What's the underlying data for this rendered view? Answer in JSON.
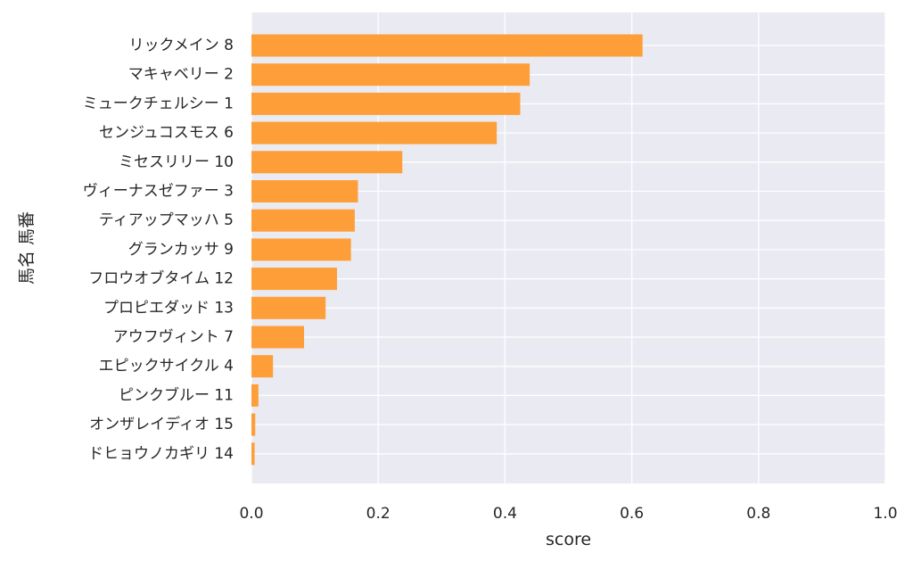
{
  "chart_data": {
    "type": "bar",
    "orientation": "horizontal",
    "title": "",
    "xlabel": "score",
    "ylabel": "馬名 馬番",
    "xlim": [
      0,
      1.0
    ],
    "xticks": [
      "0.0",
      "0.2",
      "0.4",
      "0.6",
      "0.8",
      "1.0"
    ],
    "grid": true,
    "bar_color": "#ff9a2e",
    "plot_background": "#eaeaf2",
    "categories": [
      "リックメイン 8",
      "マキャベリー 2",
      "ミュークチェルシー 1",
      "センジュコスモス 6",
      "ミセスリリー 10",
      "ヴィーナスゼファー 3",
      "ティアップマッハ 5",
      "グランカッサ 9",
      "フロウオブタイム 12",
      "プロピエダッド 13",
      "アウフヴィント 7",
      "エピックサイクル 4",
      "ピンクブルー 11",
      "オンザレイディオ 15",
      "ドヒョウノカギリ 14"
    ],
    "values": [
      0.617,
      0.439,
      0.424,
      0.387,
      0.238,
      0.168,
      0.163,
      0.157,
      0.135,
      0.117,
      0.083,
      0.034,
      0.011,
      0.006,
      0.005
    ]
  }
}
